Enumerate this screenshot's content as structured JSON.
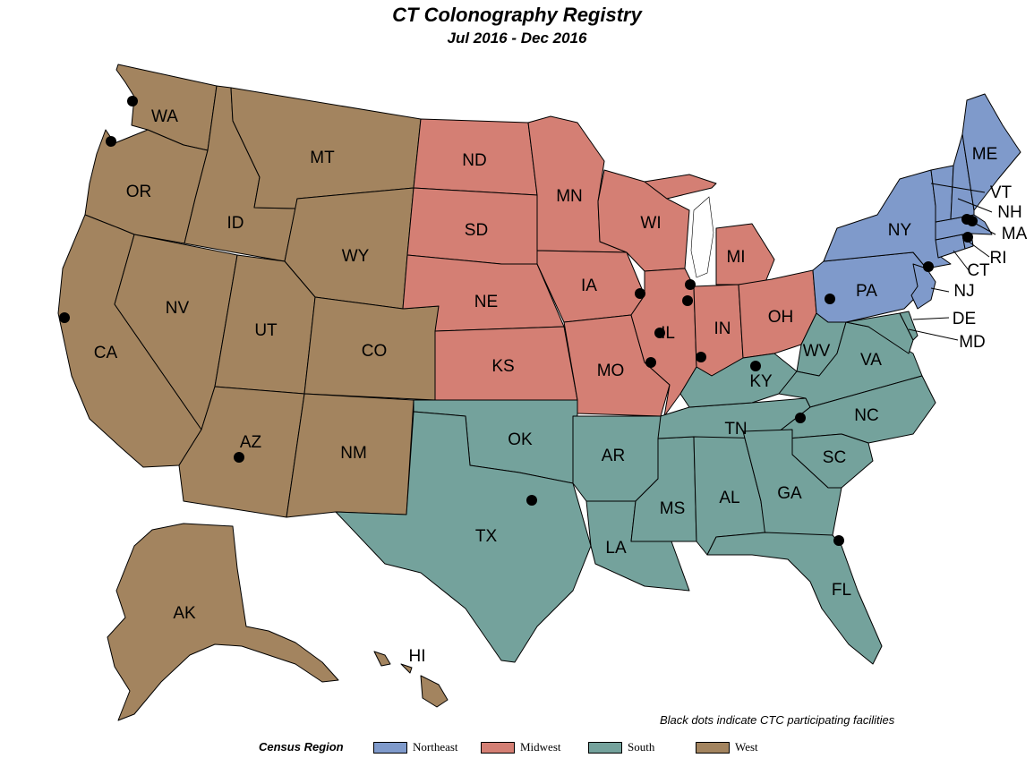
{
  "title": "CT Colonography Registry",
  "subtitle": "Jul 2016 - Dec 2016",
  "note": "Black dots indicate CTC participating facilities",
  "legend": {
    "title": "Census Region",
    "items": [
      {
        "label": "Northeast",
        "color": "#7f9acb"
      },
      {
        "label": "Midwest",
        "color": "#d47f74"
      },
      {
        "label": "South",
        "color": "#74a29c"
      },
      {
        "label": "West",
        "color": "#a3845f"
      }
    ]
  },
  "states": {
    "WA": "WA",
    "OR": "OR",
    "CA": "CA",
    "NV": "NV",
    "ID": "ID",
    "MT": "MT",
    "WY": "WY",
    "UT": "UT",
    "CO": "CO",
    "AZ": "AZ",
    "NM": "NM",
    "AK": "AK",
    "HI": "HI",
    "ND": "ND",
    "SD": "SD",
    "NE": "NE",
    "KS": "KS",
    "MN": "MN",
    "IA": "IA",
    "MO": "MO",
    "WI": "WI",
    "IL": "IL",
    "IN": "IN",
    "MI": "MI",
    "OH": "OH",
    "OK": "OK",
    "TX": "TX",
    "AR": "AR",
    "LA": "LA",
    "MS": "MS",
    "AL": "AL",
    "TN": "TN",
    "KY": "KY",
    "WV": "WV",
    "VA": "VA",
    "NC": "NC",
    "SC": "SC",
    "GA": "GA",
    "FL": "FL",
    "DE": "DE",
    "MD": "MD",
    "PA": "PA",
    "NY": "NY",
    "NJ": "NJ",
    "CT": "CT",
    "RI": "RI",
    "MA": "MA",
    "NH": "NH",
    "VT": "VT",
    "ME": "ME"
  }
}
